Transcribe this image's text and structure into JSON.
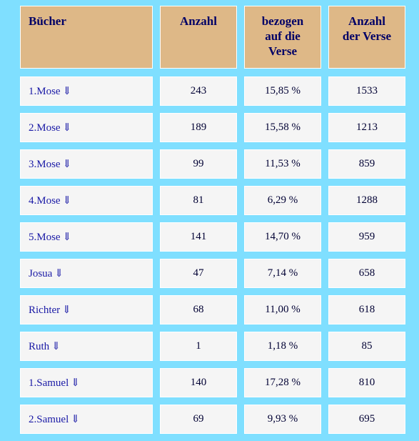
{
  "header": {
    "col1": "Bücher",
    "col2": "Anzahl",
    "col3_lines": [
      "bezogen",
      "auf die",
      "Verse"
    ],
    "col4_lines": [
      "Anzahl",
      "der Verse"
    ]
  },
  "arrow_glyph": "⇓",
  "rows": [
    {
      "book": "1.Mose",
      "count": "243",
      "percent": "15,85 %",
      "verses": "1533"
    },
    {
      "book": "2.Mose",
      "count": "189",
      "percent": "15,58 %",
      "verses": "1213"
    },
    {
      "book": "3.Mose",
      "count": "99",
      "percent": "11,53 %",
      "verses": "859"
    },
    {
      "book": "4.Mose",
      "count": "81",
      "percent": "6,29 %",
      "verses": "1288"
    },
    {
      "book": "5.Mose",
      "count": "141",
      "percent": "14,70 %",
      "verses": "959"
    },
    {
      "book": "Josua",
      "count": "47",
      "percent": "7,14 %",
      "verses": "658"
    },
    {
      "book": "Richter",
      "count": "68",
      "percent": "11,00 %",
      "verses": "618"
    },
    {
      "book": "Ruth",
      "count": "1",
      "percent": "1,18 %",
      "verses": "85"
    },
    {
      "book": "1.Samuel",
      "count": "140",
      "percent": "17,28 %",
      "verses": "810"
    },
    {
      "book": "2.Samuel",
      "count": "69",
      "percent": "9,93 %",
      "verses": "695"
    }
  ],
  "colors": {
    "page_background": "#7fdfff",
    "header_background": "#deb887",
    "cell_background": "#f5f5f5",
    "header_text": "#000066",
    "link_text": "#1a1aa6"
  }
}
